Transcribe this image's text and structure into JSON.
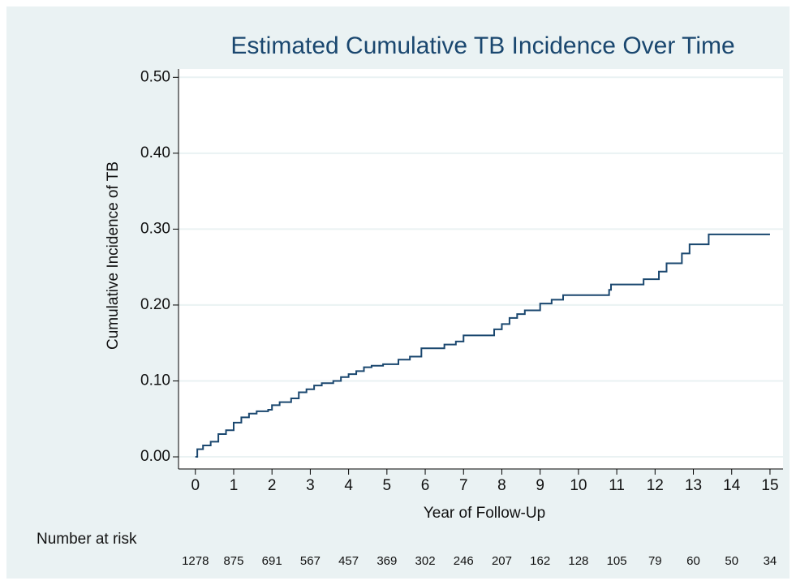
{
  "chart_data": {
    "type": "step",
    "title": "Estimated Cumulative TB Incidence Over Time",
    "x_label": "Year of Follow-Up",
    "y_label": "Cumulative Incidence of TB",
    "color": "#1a476f",
    "grid": true,
    "xlim": [
      -0.44,
      15.34
    ],
    "ylim": [
      -0.016,
      0.511
    ],
    "xticks": [
      0,
      1,
      2,
      3,
      4,
      5,
      6,
      7,
      8,
      9,
      10,
      11,
      12,
      13,
      14,
      15
    ],
    "yticks": [
      {
        "value": 0,
        "label": "0.00"
      },
      {
        "value": 0.1,
        "label": "0.10"
      },
      {
        "value": 0.2,
        "label": "0.20"
      },
      {
        "value": 0.3,
        "label": "0.30"
      },
      {
        "value": 0.4,
        "label": "0.40"
      },
      {
        "value": 0.5,
        "label": "0.50"
      }
    ],
    "x": [
      0,
      0.05,
      0.2,
      0.4,
      0.6,
      0.8,
      1,
      1.2,
      1.4,
      1.6,
      1.9,
      2,
      2.2,
      2.5,
      2.7,
      2.9,
      3.1,
      3.3,
      3.6,
      3.8,
      4.0,
      4.2,
      4.4,
      4.6,
      4.9,
      5.3,
      5.6,
      5.9,
      6.5,
      6.8,
      7.0,
      7.8,
      8.0,
      8.2,
      8.4,
      8.6,
      9.0,
      9.3,
      9.6,
      10.8,
      10.85,
      11.7,
      12.1,
      12.3,
      12.7,
      12.9,
      13.4,
      15
    ],
    "values": [
      0,
      0.01,
      0.015,
      0.02,
      0.03,
      0.035,
      0.045,
      0.052,
      0.057,
      0.06,
      0.062,
      0.068,
      0.072,
      0.077,
      0.085,
      0.089,
      0.094,
      0.097,
      0.1,
      0.105,
      0.109,
      0.113,
      0.118,
      0.12,
      0.122,
      0.128,
      0.132,
      0.143,
      0.148,
      0.152,
      0.16,
      0.168,
      0.175,
      0.183,
      0.188,
      0.193,
      0.202,
      0.207,
      0.213,
      0.22,
      0.227,
      0.234,
      0.244,
      0.255,
      0.268,
      0.28,
      0.293,
      0.293
    ],
    "risk_table": {
      "label": "Number at risk",
      "x": [
        0,
        1,
        2,
        3,
        4,
        5,
        6,
        7,
        8,
        9,
        10,
        11,
        12,
        13,
        14,
        15
      ],
      "values": [
        1278,
        875,
        691,
        567,
        457,
        369,
        302,
        246,
        207,
        162,
        128,
        105,
        79,
        60,
        50,
        34
      ]
    }
  }
}
